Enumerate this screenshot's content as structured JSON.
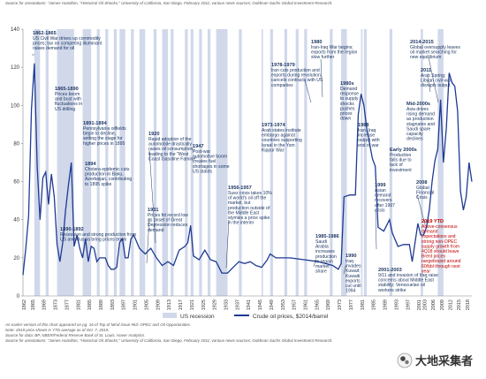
{
  "chart_data": {
    "type": "line",
    "ylim": [
      0,
      140
    ],
    "yticks": [
      0,
      20,
      40,
      60,
      80,
      100,
      120,
      140
    ],
    "xlim": [
      1861,
      2019
    ],
    "xticks": [
      1862,
      1865,
      1869,
      1873,
      1877,
      1881,
      1885,
      1889,
      1893,
      1897,
      1901,
      1905,
      1909,
      1913,
      1917,
      1921,
      1925,
      1929,
      1933,
      1937,
      1941,
      1945,
      1949,
      1953,
      1957,
      1961,
      1965,
      1969,
      1973,
      1977,
      1981,
      1985,
      1989,
      1993,
      1997,
      2001,
      2003,
      2006,
      2009,
      2012,
      2015,
      2018
    ],
    "legend": [
      {
        "key": "recession",
        "label": "US recession",
        "color": "#d0d8ea"
      },
      {
        "key": "price",
        "label": "Crude oil prices, $2014/barrel",
        "color": "#1f3a93"
      }
    ],
    "series": [
      {
        "name": "Crude oil prices, $2014/barrel",
        "color": "#1f3a93",
        "x": [
          1861,
          1862,
          1863,
          1864,
          1865,
          1866,
          1867,
          1868,
          1869,
          1870,
          1871,
          1872,
          1873,
          1874,
          1875,
          1876,
          1877,
          1878,
          1879,
          1880,
          1881,
          1882,
          1883,
          1884,
          1885,
          1886,
          1887,
          1888,
          1889,
          1890,
          1891,
          1892,
          1893,
          1894,
          1895,
          1896,
          1897,
          1898,
          1899,
          1900,
          1902,
          1904,
          1906,
          1908,
          1910,
          1912,
          1914,
          1916,
          1918,
          1919,
          1920,
          1921,
          1923,
          1925,
          1927,
          1929,
          1931,
          1933,
          1935,
          1937,
          1939,
          1941,
          1943,
          1945,
          1947,
          1948,
          1950,
          1955,
          1960,
          1965,
          1970,
          1972,
          1973,
          1974,
          1976,
          1978,
          1979,
          1980,
          1981,
          1982,
          1984,
          1985,
          1986,
          1988,
          1990,
          1991,
          1993,
          1995,
          1997,
          1998,
          1999,
          2000,
          2001,
          2002,
          2003,
          2004,
          2005,
          2006,
          2007,
          2008,
          2009,
          2010,
          2011,
          2012,
          2013,
          2014,
          2015,
          2016,
          2017,
          2018,
          2019
        ],
        "y": [
          11,
          25,
          42,
          98,
          122,
          68,
          40,
          62,
          65,
          48,
          64,
          52,
          27,
          18,
          28,
          45,
          58,
          70,
          26,
          32,
          25,
          20,
          30,
          18,
          26,
          25,
          18,
          20,
          20,
          20,
          16,
          14,
          14,
          15,
          28,
          30,
          20,
          20,
          30,
          32,
          25,
          22,
          25,
          20,
          16,
          18,
          16,
          24,
          26,
          28,
          37,
          21,
          19,
          24,
          19,
          18,
          12,
          12,
          15,
          18,
          17,
          18,
          16,
          15,
          19,
          22,
          20,
          20,
          19,
          18,
          16,
          14,
          17,
          52,
          53,
          53,
          95,
          106,
          100,
          88,
          72,
          68,
          36,
          34,
          40,
          33,
          26,
          27,
          27,
          18,
          28,
          38,
          32,
          32,
          36,
          45,
          60,
          71,
          77,
          103,
          70,
          88,
          117,
          112,
          110,
          97,
          55,
          45,
          52,
          70,
          60
        ]
      }
    ],
    "recessions": [
      [
        1865,
        1867
      ],
      [
        1869,
        1870
      ],
      [
        1873,
        1879
      ],
      [
        1882,
        1885
      ],
      [
        1887,
        1888
      ],
      [
        1890,
        1891
      ],
      [
        1893,
        1894
      ],
      [
        1895,
        1897
      ],
      [
        1899,
        1900
      ],
      [
        1902,
        1904
      ],
      [
        1907,
        1908
      ],
      [
        1910,
        1912
      ],
      [
        1913,
        1914
      ],
      [
        1918,
        1919
      ],
      [
        1920,
        1921
      ],
      [
        1923,
        1924
      ],
      [
        1926,
        1927
      ],
      [
        1929,
        1933
      ],
      [
        1937,
        1938
      ],
      [
        1945,
        1945.5
      ],
      [
        1948,
        1949
      ],
      [
        1953,
        1954
      ],
      [
        1957,
        1958
      ],
      [
        1960,
        1961
      ],
      [
        1969,
        1970
      ],
      [
        1973,
        1975
      ],
      [
        1980,
        1980.5
      ],
      [
        1981,
        1982
      ],
      [
        1990,
        1991
      ],
      [
        2001,
        2001.8
      ],
      [
        2007,
        2009
      ]
    ],
    "annotations": [
      {
        "key": "a1862",
        "title": "1862-1865",
        "body": [
          "US Civil War drives up commodity",
          "prices; tax on competing illuminant",
          "raises demand for oil"
        ]
      },
      {
        "key": "a1865",
        "title": "1865-1890",
        "body": [
          "Prices boom",
          "and bust with",
          "fluctuations in",
          "US drilling"
        ]
      },
      {
        "key": "a1891",
        "title": "1891-1894",
        "body": [
          "Pennsylvania oilfields",
          "begin to decline,",
          "setting the stage for",
          "higher prices in 1895"
        ]
      },
      {
        "key": "a1894",
        "title": "1894",
        "body": [
          "Cholera epidemic cuts",
          "production in Baku,",
          "Azerbaijan, contributing",
          "to 1895 spike"
        ]
      },
      {
        "key": "a1890",
        "title": "1890-1892",
        "body": [
          "Recession and strong production from",
          "US and Russia bring prices down"
        ]
      },
      {
        "key": "a1920",
        "title": "1920",
        "body": [
          "Rapid adoption of the",
          "automobile drastically",
          "raises oil consumption,",
          "leading to the \"West",
          "Coast Gasoline Famine\""
        ]
      },
      {
        "key": "a1931",
        "title": "1931",
        "body": [
          "Prices hit record low",
          "as onset of Great",
          "Depression reduces",
          "demand"
        ]
      },
      {
        "key": "a1947",
        "title": "1947",
        "body": [
          "Post-war",
          "automotive boom",
          "creates fuel",
          "shortages in some",
          "US states"
        ]
      },
      {
        "key": "a1956",
        "title": "1956-1957",
        "body": [
          "Suez crisis takes 10%",
          "of world's oil off the",
          "market, but",
          "production outside of",
          "the Middle East",
          "stymies a price spike",
          "in the interim"
        ]
      },
      {
        "key": "a1973",
        "title": "1973-1974",
        "body": [
          "Arab states institute",
          "embargo against",
          "countries supporting",
          "Israel in the Yom",
          "Kippur War"
        ]
      },
      {
        "key": "a1978",
        "title": "1978-1979",
        "body": [
          "Iran cuts production and",
          "exports during revolution,",
          "cancels contracts with US",
          "companies"
        ]
      },
      {
        "key": "a1980",
        "title": "1980",
        "body": [
          "Iran-Iraq War begins;",
          "exports from the region",
          "slow further"
        ]
      },
      {
        "key": "a1980s",
        "title": "1980s",
        "body": [
          "Demand",
          "response",
          "to supply",
          "shocks",
          "pushes",
          "prices",
          "down"
        ]
      },
      {
        "key": "a1988",
        "title": "1988",
        "body": [
          "Iran, Iraq",
          "increase",
          "output with",
          "end of war"
        ]
      },
      {
        "key": "a1985",
        "title": "1985-1986",
        "body": [
          "Saudi",
          "Arabia",
          "increases",
          "production",
          "to regain",
          "market",
          "share"
        ]
      },
      {
        "key": "a1990",
        "title": "1990",
        "body": [
          "Iraq",
          "invades",
          "Kuwait;",
          "Kuwaiti",
          "exports",
          "cut until",
          "1994"
        ]
      },
      {
        "key": "a2014",
        "title": "2014-2015",
        "body": [
          "Global oversupply leaves",
          "oil market searching for",
          "new equilibrium"
        ]
      },
      {
        "key": "a2011",
        "title": "2011",
        "body": [
          "Arab Spring;",
          "Libyan civil war",
          "disrupts output"
        ]
      },
      {
        "key": "aMid2000",
        "title": "Mid-2000s",
        "body": [
          "Asia drives",
          "rising demand",
          "as production",
          "stagnates and",
          "Saudi spare",
          "capacity",
          "declines"
        ]
      },
      {
        "key": "aEarly2000",
        "title": "Early 2000s",
        "body": [
          "Production",
          "falls due to",
          "lack of",
          "investment"
        ]
      },
      {
        "key": "a2008",
        "title": "2008",
        "body": [
          "Global",
          "Financial",
          "Crisis"
        ]
      },
      {
        "key": "a1999",
        "title": "1999",
        "body": [
          "Asian",
          "demand",
          "recovers",
          "after 1997",
          "crisis"
        ]
      },
      {
        "key": "a2019",
        "title": "2019 YTD",
        "red": true,
        "body": [
          "Above-consensus",
          "demand",
          "expectations and",
          "strong non-OPEC",
          "supply growth from",
          "4Q18 should leave",
          "Brent prices",
          "rangebound around",
          "60/bbl through next",
          "year"
        ]
      },
      {
        "key": "a2001",
        "title": "2001-2003",
        "body": [
          "9/11 and invasion of Iraq raise",
          "concerns about Middle East",
          "stability; Venezuelan oil",
          "workers strike"
        ]
      }
    ],
    "notes": [
      "An earlier version of this chart appeared on pg. 16 of Top of Mind issue #63: OPEC and Oil Opportunities.",
      "Note: 2019 price shown is YTD average as of Oct. 7, 2019.",
      "Source for data: BP, NBER/Federal Reserve Bank of St. Louis, Haver Analytics.",
      "Source for annotations: \"James Hamilton, \"Historical Oil Shocks,\" University of California, San Diego, February 2011; various news sources; Goldman Sachs Global Investment Research."
    ],
    "top_note": "Source for annotations: \"James Hamilton, \"Historical Oil Shocks,\" University of California, San Diego, February 2011; various news sources; Goldman Sachs Global Investment Research.",
    "watermark": "大地采集者"
  }
}
